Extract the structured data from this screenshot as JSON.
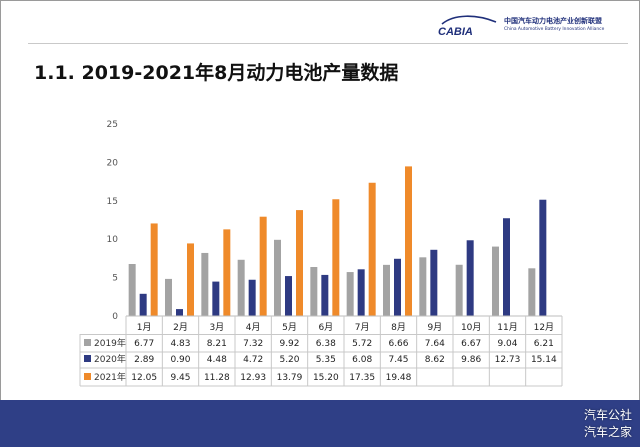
{
  "header": {
    "logo_text": "CABIA",
    "org_name_cn": "中国汽车动力电池产业创新联盟",
    "org_name_en": "China Automotive Battery Innovation Alliance"
  },
  "slide": {
    "title": "1.1. 2019-2021年8月动力电池产量数据"
  },
  "watermark": {
    "line1": "汽车公社",
    "line2": "汽车之家"
  },
  "colors": {
    "background": "#ffffff",
    "footer": "#2f3f86",
    "logo": "#1f2f7a"
  },
  "chart_data": {
    "type": "bar",
    "categories": [
      "1月",
      "2月",
      "3月",
      "4月",
      "5月",
      "6月",
      "7月",
      "8月",
      "9月",
      "10月",
      "11月",
      "12月"
    ],
    "series": [
      {
        "name": "2019年",
        "color": "#a3a3a3",
        "values": [
          6.77,
          4.83,
          8.21,
          7.32,
          9.92,
          6.38,
          5.72,
          6.66,
          7.64,
          6.67,
          9.04,
          6.21
        ]
      },
      {
        "name": "2020年",
        "color": "#2e3a82",
        "values": [
          2.89,
          0.9,
          4.48,
          4.72,
          5.2,
          5.35,
          6.08,
          7.45,
          8.62,
          9.86,
          12.73,
          15.14
        ]
      },
      {
        "name": "2021年",
        "color": "#ef8a2a",
        "values": [
          12.05,
          9.45,
          11.28,
          12.93,
          13.79,
          15.2,
          17.35,
          19.48,
          null,
          null,
          null,
          null
        ]
      }
    ],
    "table_values": [
      [
        "6.77",
        "4.83",
        "8.21",
        "7.32",
        "9.92",
        "6.38",
        "5.72",
        "6.66",
        "7.64",
        "6.67",
        "9.04",
        "6.21"
      ],
      [
        "2.89",
        "0.90",
        "4.48",
        "4.72",
        "5.20",
        "5.35",
        "6.08",
        "7.45",
        "8.62",
        "9.86",
        "12.73",
        "15.14"
      ],
      [
        "12.05",
        "9.45",
        "11.28",
        "12.93",
        "13.79",
        "15.20",
        "17.35",
        "19.48",
        "",
        "",
        "",
        ""
      ]
    ],
    "y_ticks": [
      "0",
      "5",
      "10",
      "15",
      "20",
      "25"
    ],
    "ylim": [
      0,
      25
    ],
    "grid": false,
    "legend": "table-left"
  }
}
